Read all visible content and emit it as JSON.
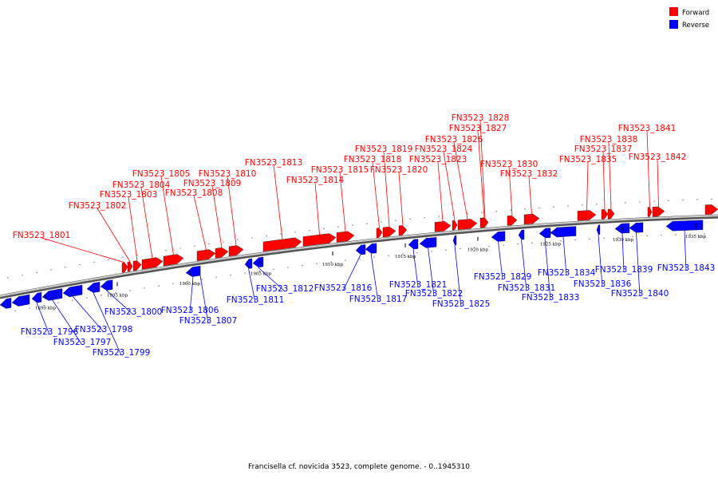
{
  "legend": {
    "forward": {
      "label": "Forward",
      "color": "#ff0000"
    },
    "reverse": {
      "label": "Reverse",
      "color": "#0000ff"
    }
  },
  "caption": "Francisella cf. novicida 3523, complete genome. - 0..1945310",
  "scale_ticks": [
    "1890 kbp",
    "1895 kbp",
    "1900 kbp",
    "1905 kbp",
    "1910 kbp",
    "1915 kbp",
    "1920 kbp",
    "1925 kbp",
    "1930 kbp",
    "1935 kbp"
  ],
  "forward_genes": [
    "FN3523_1801",
    "FN3523_1802",
    "FN3523_1803",
    "FN3523_1804",
    "FN3523_1805",
    "FN3523_1808",
    "FN3523_1809",
    "FN3523_1810",
    "FN3523_1813",
    "FN3523_1814",
    "FN3523_1815",
    "FN3523_1818",
    "FN3523_1819",
    "FN3523_1820",
    "FN3523_1823",
    "FN3523_1824",
    "FN3523_1826",
    "FN3523_1827",
    "FN3523_1828",
    "FN3523_1830",
    "FN3523_1832",
    "FN3523_1835",
    "FN3523_1837",
    "FN3523_1838",
    "FN3523_1841",
    "FN3523_1842"
  ],
  "reverse_genes": [
    "FN3523_1796",
    "FN3523_1797",
    "FN3523_1798",
    "FN3523_1799",
    "FN3523_1800",
    "FN3523_1806",
    "FN3523_1807",
    "FN3523_1811",
    "FN3523_1812",
    "FN3523_1816",
    "FN3523_1817",
    "FN3523_1821",
    "FN3523_1822",
    "FN3523_1825",
    "FN3523_1829",
    "FN3523_1831",
    "FN3523_1833",
    "FN3523_1834",
    "FN3523_1836",
    "FN3523_1839",
    "FN3523_1840",
    "FN3523_1843"
  ]
}
